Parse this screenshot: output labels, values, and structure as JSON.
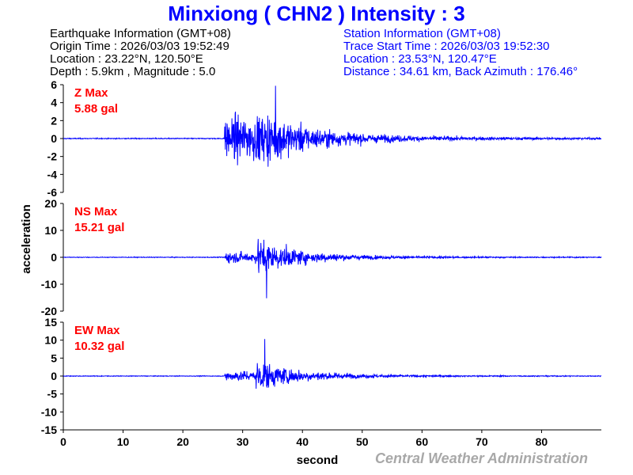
{
  "header": {
    "title": "Minxiong ( CHN2 ) Intensity : 3"
  },
  "earthquake_info": {
    "heading": "Earthquake Information  (GMT+08)",
    "origin_time": "Origin Time : 2026/03/03 19:52:49",
    "location": "Location : 23.22°N, 120.50°E",
    "depth_magnitude": "Depth : 5.9km , Magnitude : 5.0"
  },
  "station_info": {
    "heading": "Station Information  (GMT+08)",
    "trace_start": "Trace Start Time : 2026/03/03 19:52:30",
    "location": "Location : 23.53°N, 120.47°E",
    "distance": "Distance : 34.61 km, Back Azimuth : 176.46°"
  },
  "footer": {
    "credit": "Central Weather Administration"
  },
  "chart_data": {
    "type": "line",
    "xlabel": "second",
    "ylabel": "acceleration",
    "xlim": [
      0,
      90
    ],
    "xticks": [
      0,
      10,
      20,
      30,
      40,
      50,
      60,
      70,
      80
    ],
    "line_color": "#0000ff",
    "label_color": "#ff0000",
    "grid": false,
    "panels": [
      {
        "component": "Z",
        "label": "Z Max",
        "max_label": "5.88 gal",
        "peak": 5.88,
        "ylim": [
          -6,
          6
        ],
        "yticks": [
          6,
          4,
          2,
          0,
          -2,
          -4,
          -6
        ],
        "onset_s": 27,
        "peak_time_s": 35.5
      },
      {
        "component": "NS",
        "label": "NS Max",
        "max_label": "15.21 gal",
        "peak": 15.21,
        "ylim": [
          -20,
          20
        ],
        "yticks": [
          20,
          10,
          0,
          -10,
          -20
        ],
        "onset_s": 27,
        "peak_time_s": 34
      },
      {
        "component": "EW",
        "label": "EW Max",
        "max_label": "10.32 gal",
        "peak": 10.32,
        "ylim": [
          -15,
          15
        ],
        "yticks": [
          15,
          10,
          5,
          0,
          -5,
          -10,
          -15
        ],
        "onset_s": 27,
        "peak_time_s": 33.7
      }
    ]
  }
}
